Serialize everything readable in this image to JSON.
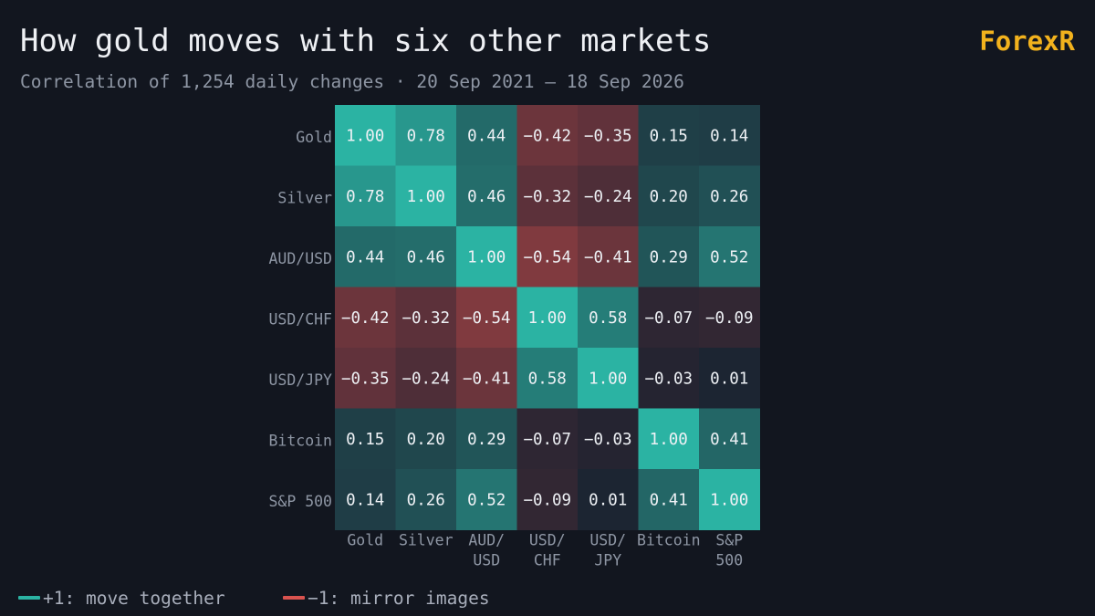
{
  "header": {
    "title": "How gold moves with six other markets",
    "subtitle": "Correlation of 1,254 daily changes · 20 Sep 2021 – 18 Sep 2026",
    "brand": "ForexR"
  },
  "legend": {
    "positive_label": "+1: move together",
    "negative_label": "−1: mirror images"
  },
  "colors": {
    "background": "#12161f",
    "positive": "#2bb3a3",
    "negative": "#c44a4a",
    "neutral": "#1c2230",
    "brand": "#f2b21d",
    "axis_text": "#8e96a4"
  },
  "chart_data": {
    "type": "heatmap",
    "title": "How gold moves with six other markets",
    "subtitle": "Correlation of 1,254 daily changes · 20 Sep 2021 – 18 Sep 2026",
    "row_labels": [
      "Gold",
      "Silver",
      "AUD/USD",
      "USD/CHF",
      "USD/JPY",
      "Bitcoin",
      "S&P 500"
    ],
    "col_labels": [
      [
        "Gold"
      ],
      [
        "Silver"
      ],
      [
        "AUD/",
        "USD"
      ],
      [
        "USD/",
        "CHF"
      ],
      [
        "USD/",
        "JPY"
      ],
      [
        "Bitcoin"
      ],
      [
        "S&P",
        "500"
      ]
    ],
    "value_range": [
      -1,
      1
    ],
    "values": [
      [
        1.0,
        0.78,
        0.44,
        -0.42,
        -0.35,
        0.15,
        0.14
      ],
      [
        0.78,
        1.0,
        0.46,
        -0.32,
        -0.24,
        0.2,
        0.26
      ],
      [
        0.44,
        0.46,
        1.0,
        -0.54,
        -0.41,
        0.29,
        0.52
      ],
      [
        -0.42,
        -0.32,
        -0.54,
        1.0,
        0.58,
        -0.07,
        -0.09
      ],
      [
        -0.35,
        -0.24,
        -0.41,
        0.58,
        1.0,
        -0.03,
        0.01
      ],
      [
        0.15,
        0.2,
        0.29,
        -0.07,
        -0.03,
        1.0,
        0.41
      ],
      [
        0.14,
        0.26,
        0.52,
        -0.09,
        0.01,
        0.41,
        1.0
      ]
    ]
  }
}
